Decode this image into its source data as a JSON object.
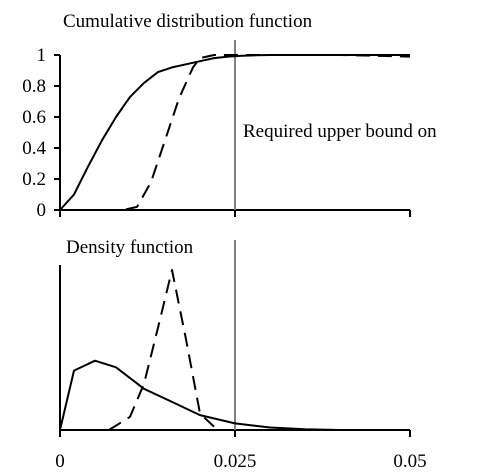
{
  "chart_data": [
    {
      "type": "line",
      "title": "Cumulative distribution function",
      "annotation": "Required upper bound on",
      "reference_x": 0.025,
      "xlim": [
        0,
        0.05
      ],
      "ylim": [
        0,
        1
      ],
      "yticks": [
        "0",
        "0.2",
        "0.4",
        "0.6",
        "0.8",
        "1"
      ],
      "ytick_values": [
        0,
        0.2,
        0.4,
        0.6,
        0.8,
        1
      ],
      "xtick_values": [
        0,
        0.025,
        0.05
      ],
      "series": [
        {
          "style": "solid",
          "x": [
            0,
            0.002,
            0.004,
            0.006,
            0.008,
            0.01,
            0.012,
            0.014,
            0.016,
            0.018,
            0.02,
            0.022,
            0.024,
            0.026,
            0.028,
            0.03,
            0.035,
            0.04,
            0.045,
            0.05
          ],
          "y": [
            0,
            0.1,
            0.28,
            0.45,
            0.6,
            0.73,
            0.82,
            0.89,
            0.92,
            0.94,
            0.96,
            0.98,
            0.99,
            0.995,
            0.998,
            1.0,
            1.0,
            1.0,
            1.0,
            1.0
          ]
        },
        {
          "style": "dashed",
          "x": [
            0,
            0.003,
            0.006,
            0.009,
            0.011,
            0.013,
            0.015,
            0.017,
            0.019,
            0.02,
            0.022,
            0.024,
            0.026,
            0.03,
            0.04,
            0.05
          ],
          "y": [
            0,
            0,
            0,
            0,
            0.02,
            0.18,
            0.45,
            0.72,
            0.92,
            0.98,
            1.0,
            1.0,
            1.0,
            1.0,
            1.0,
            0.99
          ]
        }
      ]
    },
    {
      "type": "line",
      "title": "Density function",
      "reference_x": 0.025,
      "xlim": [
        0,
        0.05
      ],
      "ylim": [
        0,
        1
      ],
      "xtick_values": [
        0,
        0.025,
        0.05
      ],
      "xticks": [
        "0",
        "0.025",
        "0.05"
      ],
      "series": [
        {
          "style": "solid",
          "x": [
            0,
            0.002,
            0.005,
            0.008,
            0.012,
            0.016,
            0.02,
            0.025,
            0.03,
            0.035,
            0.04,
            0.05
          ],
          "y": [
            0,
            0.36,
            0.42,
            0.38,
            0.25,
            0.17,
            0.09,
            0.04,
            0.015,
            0.005,
            0,
            0
          ]
        },
        {
          "style": "dashed",
          "x": [
            0.007,
            0.01,
            0.012,
            0.014,
            0.016,
            0.018,
            0.02,
            0.022
          ],
          "y": [
            0,
            0.08,
            0.28,
            0.62,
            0.97,
            0.55,
            0.1,
            0.02
          ]
        }
      ]
    }
  ]
}
